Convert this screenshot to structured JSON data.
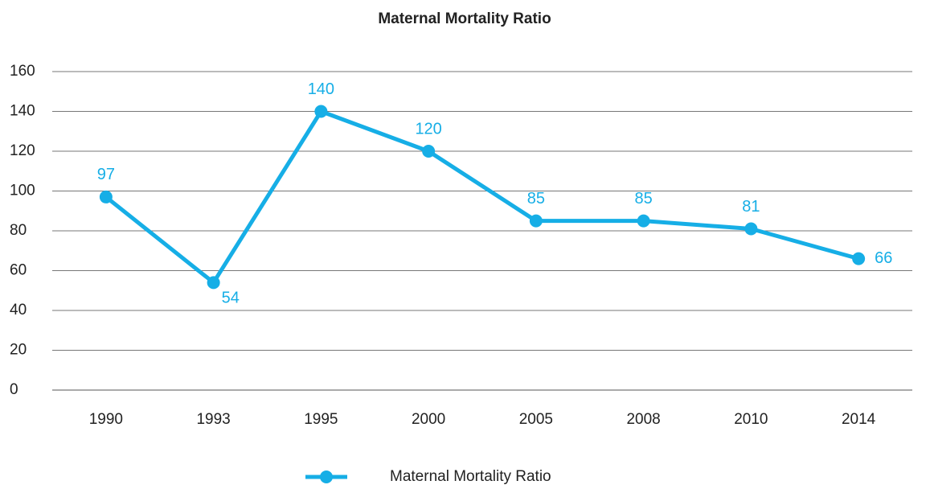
{
  "chart_data": {
    "type": "line",
    "title": "Maternal Mortality Ratio",
    "categories": [
      "1990",
      "1993",
      "1995",
      "2000",
      "2005",
      "2008",
      "2010",
      "2014"
    ],
    "series": [
      {
        "name": "Maternal Mortality Ratio",
        "color": "#16aee6",
        "values": [
          97,
          54,
          140,
          120,
          85,
          85,
          81,
          66
        ]
      }
    ],
    "ylim": [
      0,
      160
    ],
    "yticks": [
      0,
      20,
      40,
      60,
      80,
      100,
      120,
      140,
      160
    ],
    "grid": true,
    "legend": "bottom"
  }
}
